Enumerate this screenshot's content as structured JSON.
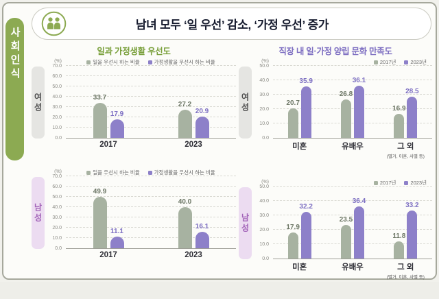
{
  "sidebar": {
    "label": "사회인식"
  },
  "header": {
    "title": "남녀 모두 ‘일 우선’ 감소, ‘가정 우선’ 증가"
  },
  "sections": [
    {
      "title": "일과 가정생활 우선도"
    },
    {
      "title": "직장 내 일·가정 양립 문화 만족도"
    }
  ],
  "colors": {
    "sidebar_green": "#8caa52",
    "header_title": "#161b2e",
    "section_left_title": "#7aa03c",
    "section_right_title": "#7e6fc2",
    "bar_gray": "#a7b2a1",
    "bar_purple": "#8d80c9",
    "val_gray": "#6d7766",
    "val_purple": "#7c6ec2",
    "band_female_bg": "#e5e5e2",
    "band_female_text": "#4d4d4d",
    "band_male_bg": "#ecdcf1",
    "band_male_text": "#a263b8"
  },
  "chart_data": [
    {
      "type": "bar",
      "group_label": "여성",
      "group_key": "female",
      "ylabel": "(%)",
      "ylim": [
        0,
        70
      ],
      "ytick_step": 10,
      "legend_align": "center",
      "categories": [
        "2017",
        "2023"
      ],
      "series": [
        {
          "name": "일을 우선시 하는 비율",
          "color": "gray",
          "values": [
            33.7,
            27.2
          ]
        },
        {
          "name": "가정생활을 우선시 하는 비율",
          "color": "purple",
          "values": [
            17.9,
            20.9
          ]
        }
      ]
    },
    {
      "type": "bar",
      "group_label": "남성",
      "group_key": "male",
      "ylabel": "(%)",
      "ylim": [
        0,
        70
      ],
      "ytick_step": 10,
      "legend_align": "center",
      "categories": [
        "2017",
        "2023"
      ],
      "series": [
        {
          "name": "일을 우선시 하는 비율",
          "color": "gray",
          "values": [
            49.9,
            40.0
          ]
        },
        {
          "name": "가정생활을 우선시 하는 비율",
          "color": "purple",
          "values": [
            11.1,
            16.1
          ]
        }
      ]
    },
    {
      "type": "bar",
      "group_label": "여성",
      "group_key": "female",
      "ylabel": "(%)",
      "ylim": [
        0,
        50
      ],
      "ytick_step": 10,
      "legend_align": "right",
      "categories": [
        "미혼",
        "유배우",
        "그 외"
      ],
      "category_subs": [
        "",
        "",
        "(별거, 이혼, 사별 등)"
      ],
      "series": [
        {
          "name": "2017년",
          "color": "gray",
          "values": [
            20.7,
            26.8,
            16.9
          ]
        },
        {
          "name": "2023년",
          "color": "purple",
          "values": [
            35.9,
            36.1,
            28.5
          ]
        }
      ]
    },
    {
      "type": "bar",
      "group_label": "남성",
      "group_key": "male",
      "ylabel": "(%)",
      "ylim": [
        0,
        50
      ],
      "ytick_step": 10,
      "legend_align": "right",
      "categories": [
        "미혼",
        "유배우",
        "그 외"
      ],
      "category_subs": [
        "",
        "",
        "(별거, 이혼, 사별 등)"
      ],
      "series": [
        {
          "name": "2017년",
          "color": "gray",
          "values": [
            17.9,
            23.5,
            11.8
          ]
        },
        {
          "name": "2023년",
          "color": "purple",
          "values": [
            32.2,
            36.4,
            33.2
          ]
        }
      ]
    }
  ]
}
